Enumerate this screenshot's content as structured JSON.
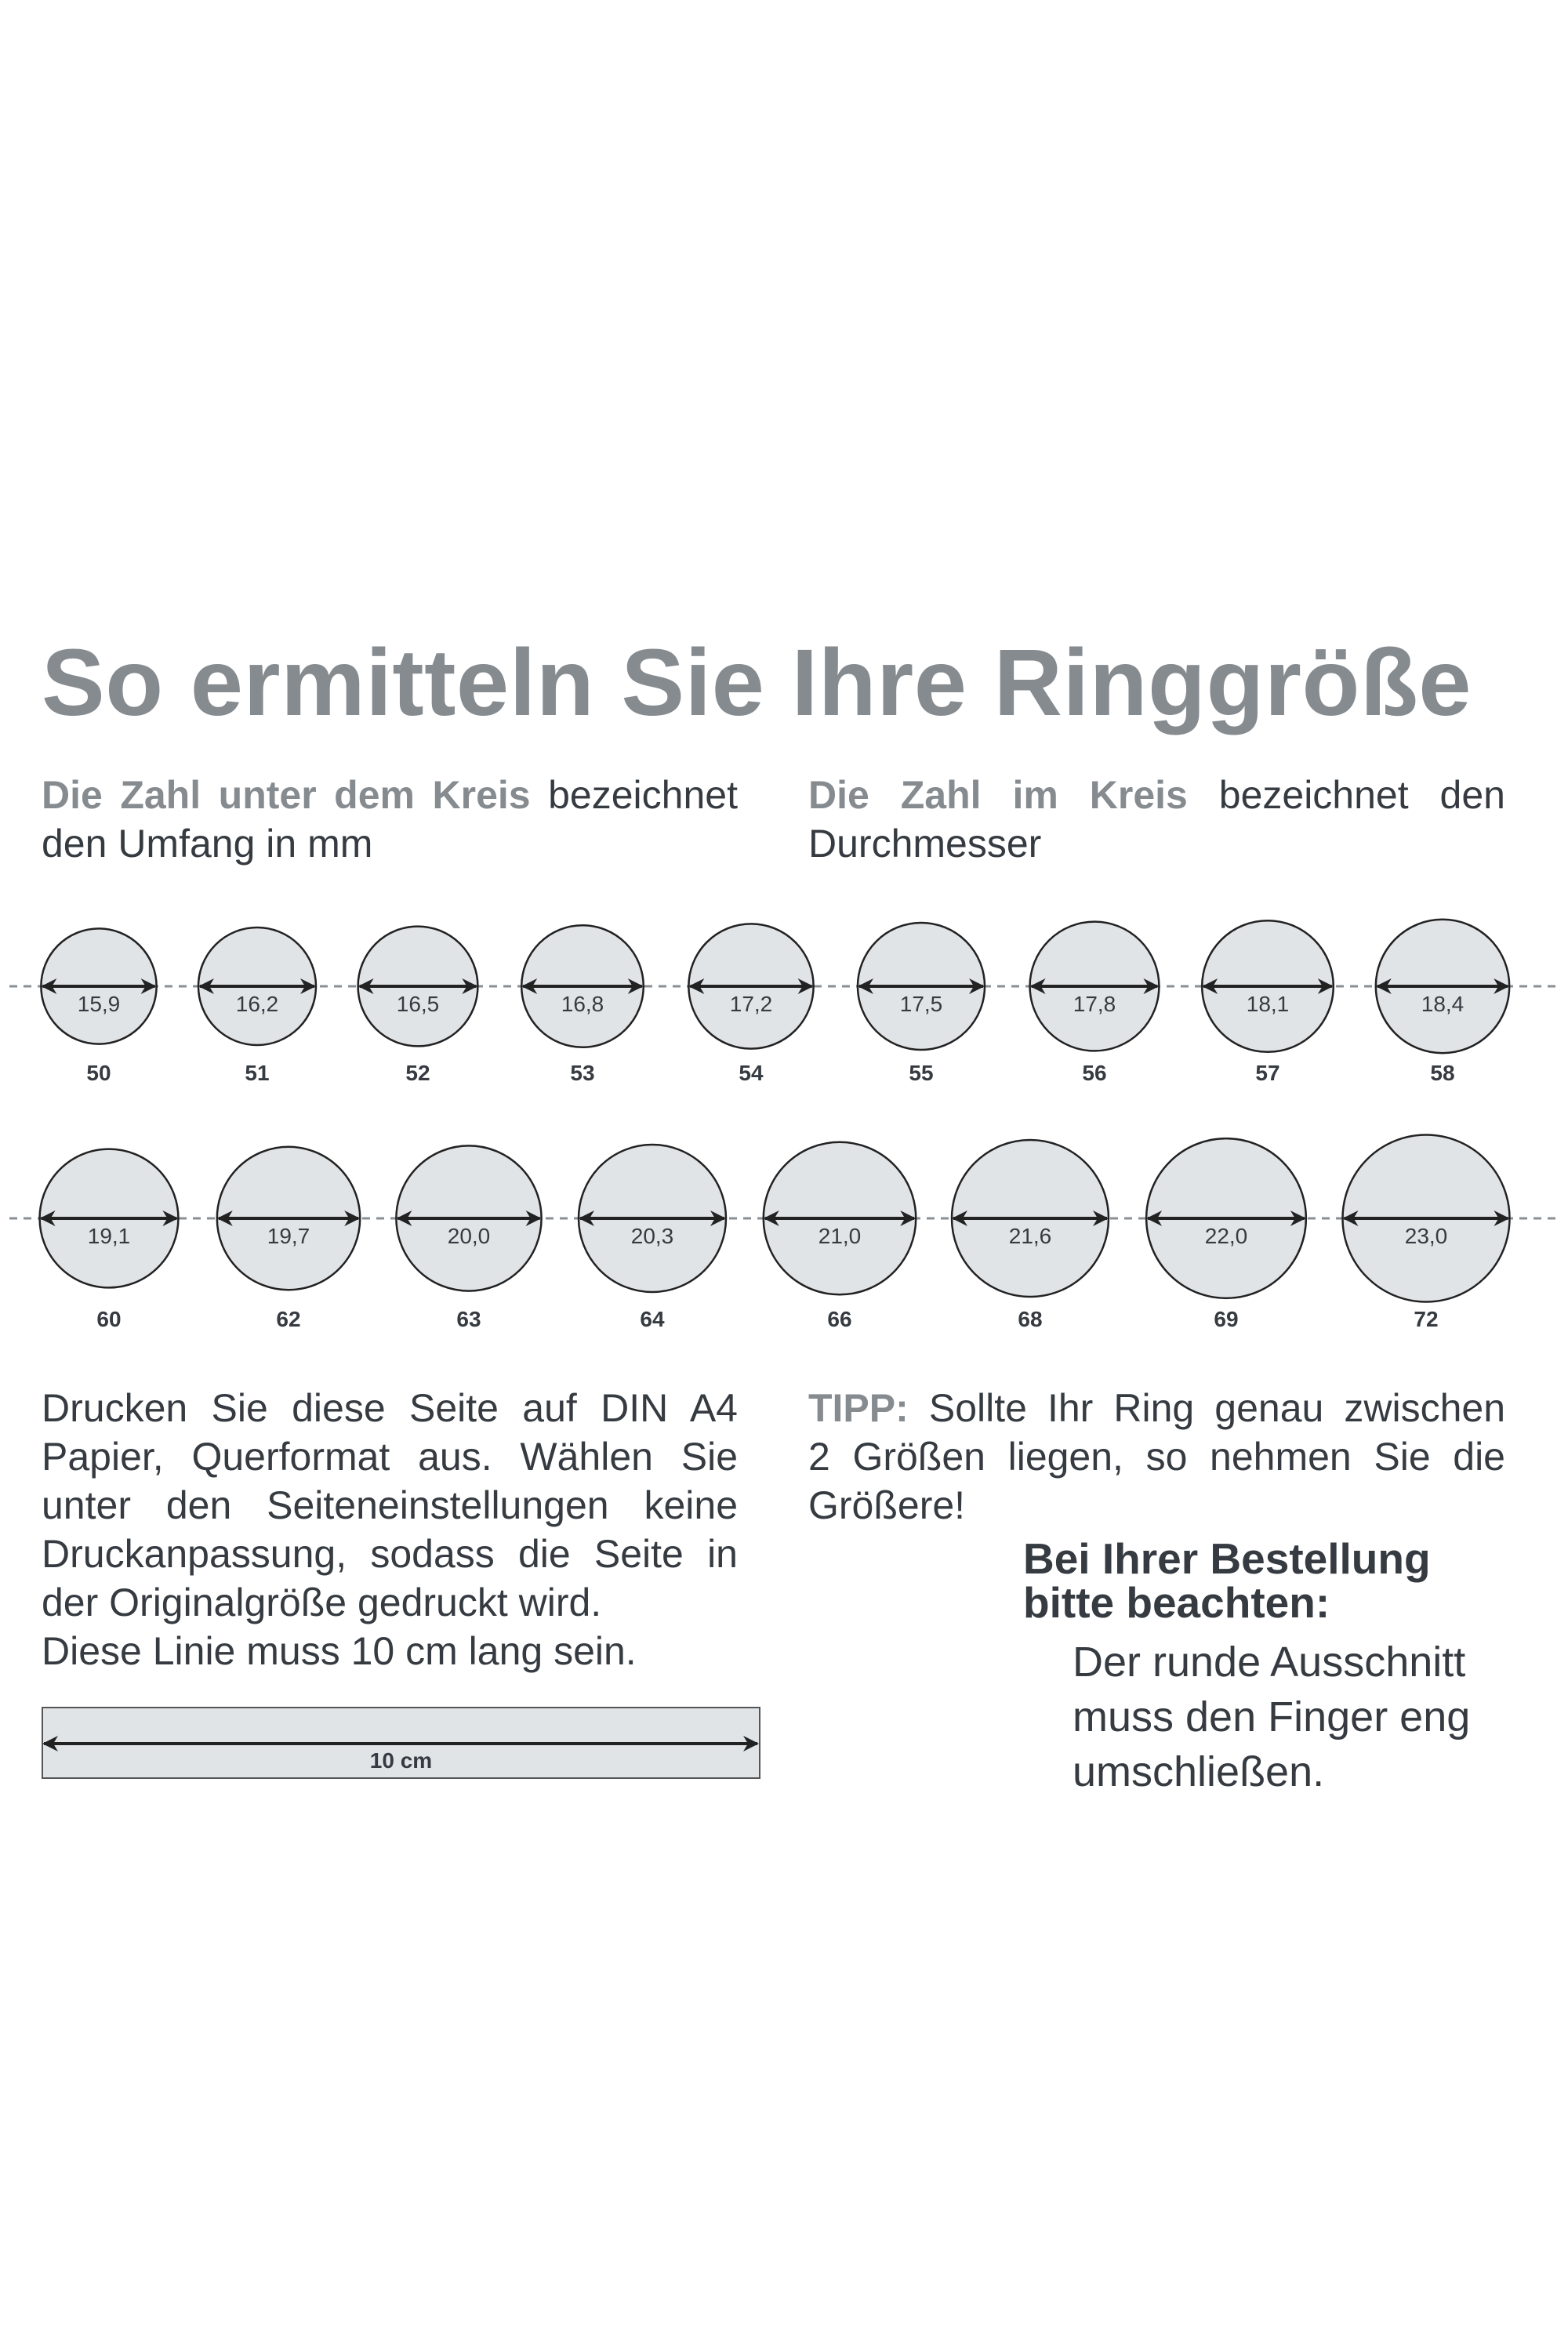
{
  "title": "So ermitteln Sie Ihre Ringgröße",
  "subtitle_left": {
    "highlight": "Die Zahl unter dem Kreis",
    "rest": "bezeichnet",
    "line2": "den Umfang in mm"
  },
  "subtitle_right": {
    "highlight": "Die Zahl im Kreis",
    "rest": "bezeichnet den",
    "line2": "Durchmesser"
  },
  "rows": [
    [
      {
        "diameter": "15,9",
        "size": "50"
      },
      {
        "diameter": "16,2",
        "size": "51"
      },
      {
        "diameter": "16,5",
        "size": "52"
      },
      {
        "diameter": "16,8",
        "size": "53"
      },
      {
        "diameter": "17,2",
        "size": "54"
      },
      {
        "diameter": "17,5",
        "size": "55"
      },
      {
        "diameter": "17,8",
        "size": "56"
      },
      {
        "diameter": "18,1",
        "size": "57"
      },
      {
        "diameter": "18,4",
        "size": "58"
      }
    ],
    [
      {
        "diameter": "19,1",
        "size": "60"
      },
      {
        "diameter": "19,7",
        "size": "62"
      },
      {
        "diameter": "20,0",
        "size": "63"
      },
      {
        "diameter": "20,3",
        "size": "64"
      },
      {
        "diameter": "21,0",
        "size": "66"
      },
      {
        "diameter": "21,6",
        "size": "68"
      },
      {
        "diameter": "22,0",
        "size": "69"
      },
      {
        "diameter": "23,0",
        "size": "72"
      }
    ]
  ],
  "instructions": [
    "Drucken Sie diese Seite auf DIN A4",
    "Papier, Querformat aus. Wählen Sie",
    "unter den Seiteneinstellungen keine",
    "Druckanpassung, sodass die Seite in",
    "der Originalgröße gedruckt wird.",
    "Diese Linie muss 10 cm lang sein."
  ],
  "ruler_label": "10 cm",
  "tip": {
    "label": "TIPP:",
    "line1": "Sollte Ihr Ring genau zwischen",
    "line2": "2 Größen liegen, so nehmen Sie die",
    "line3": "Größere!"
  },
  "order_note": {
    "heading_line1": "Bei Ihrer Bestellung",
    "heading_line2": "bitte beachten:",
    "body": [
      "Der runde Ausschnitt",
      "muss den Finger eng",
      "umschließen."
    ]
  },
  "colors": {
    "title": "#868b90",
    "text": "#353b41",
    "circle_fill": "#e1e4e7",
    "dash": "#8a8f94"
  }
}
